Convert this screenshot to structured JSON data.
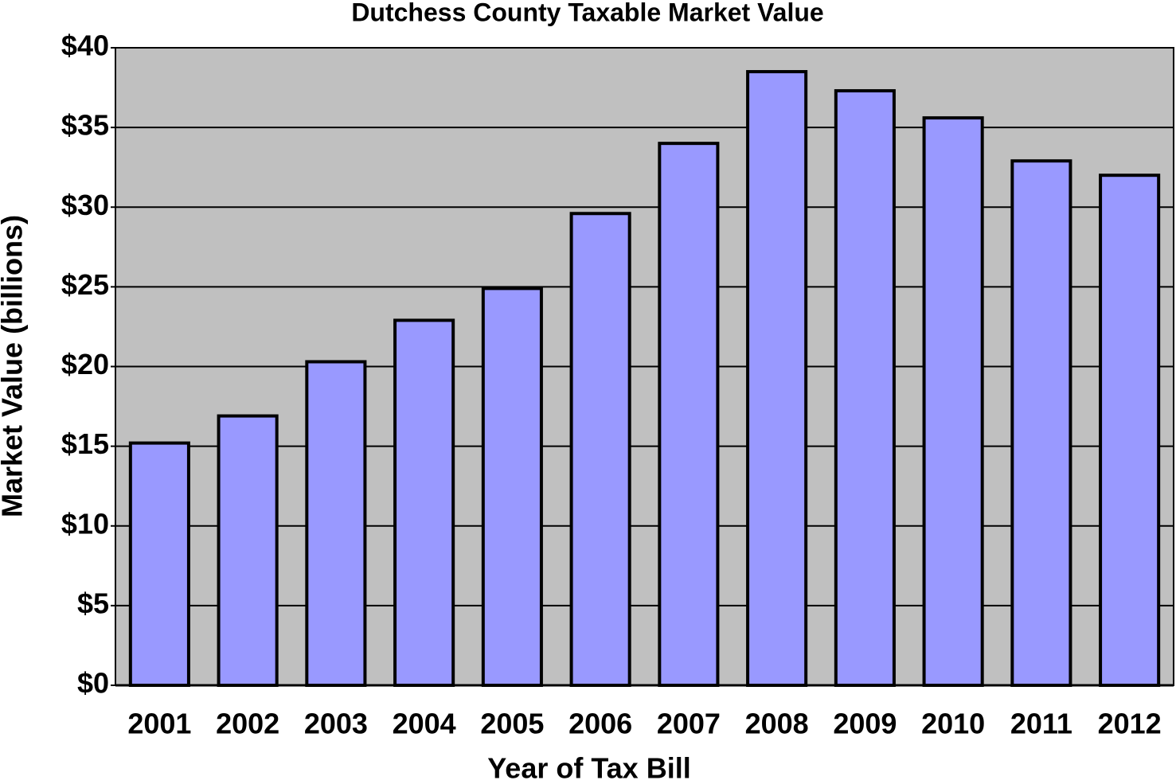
{
  "chart_data": {
    "type": "bar",
    "title": "Dutchess County Taxable Market Value",
    "x_label": "Year of Tax Bill",
    "y_label": "Market Value (billions)",
    "categories": [
      "2001",
      "2002",
      "2003",
      "2004",
      "2005",
      "2006",
      "2007",
      "2008",
      "2009",
      "2010",
      "2011",
      "2012"
    ],
    "values": [
      15.2,
      16.9,
      20.3,
      22.9,
      24.9,
      29.6,
      34.0,
      38.5,
      37.3,
      35.6,
      32.9,
      32.0
    ],
    "color": "#9999ff",
    "background": "#c0c0c0",
    "ylim": [
      0,
      40
    ],
    "yticks": [
      {
        "value": 0,
        "label": "$0"
      },
      {
        "value": 5,
        "label": "$5"
      },
      {
        "value": 10,
        "label": "$10"
      },
      {
        "value": 15,
        "label": "$15"
      },
      {
        "value": 20,
        "label": "$20"
      },
      {
        "value": 25,
        "label": "$25"
      },
      {
        "value": 30,
        "label": "$30"
      },
      {
        "value": 35,
        "label": "$35"
      },
      {
        "value": 40,
        "label": "$40"
      }
    ],
    "grid": true
  }
}
